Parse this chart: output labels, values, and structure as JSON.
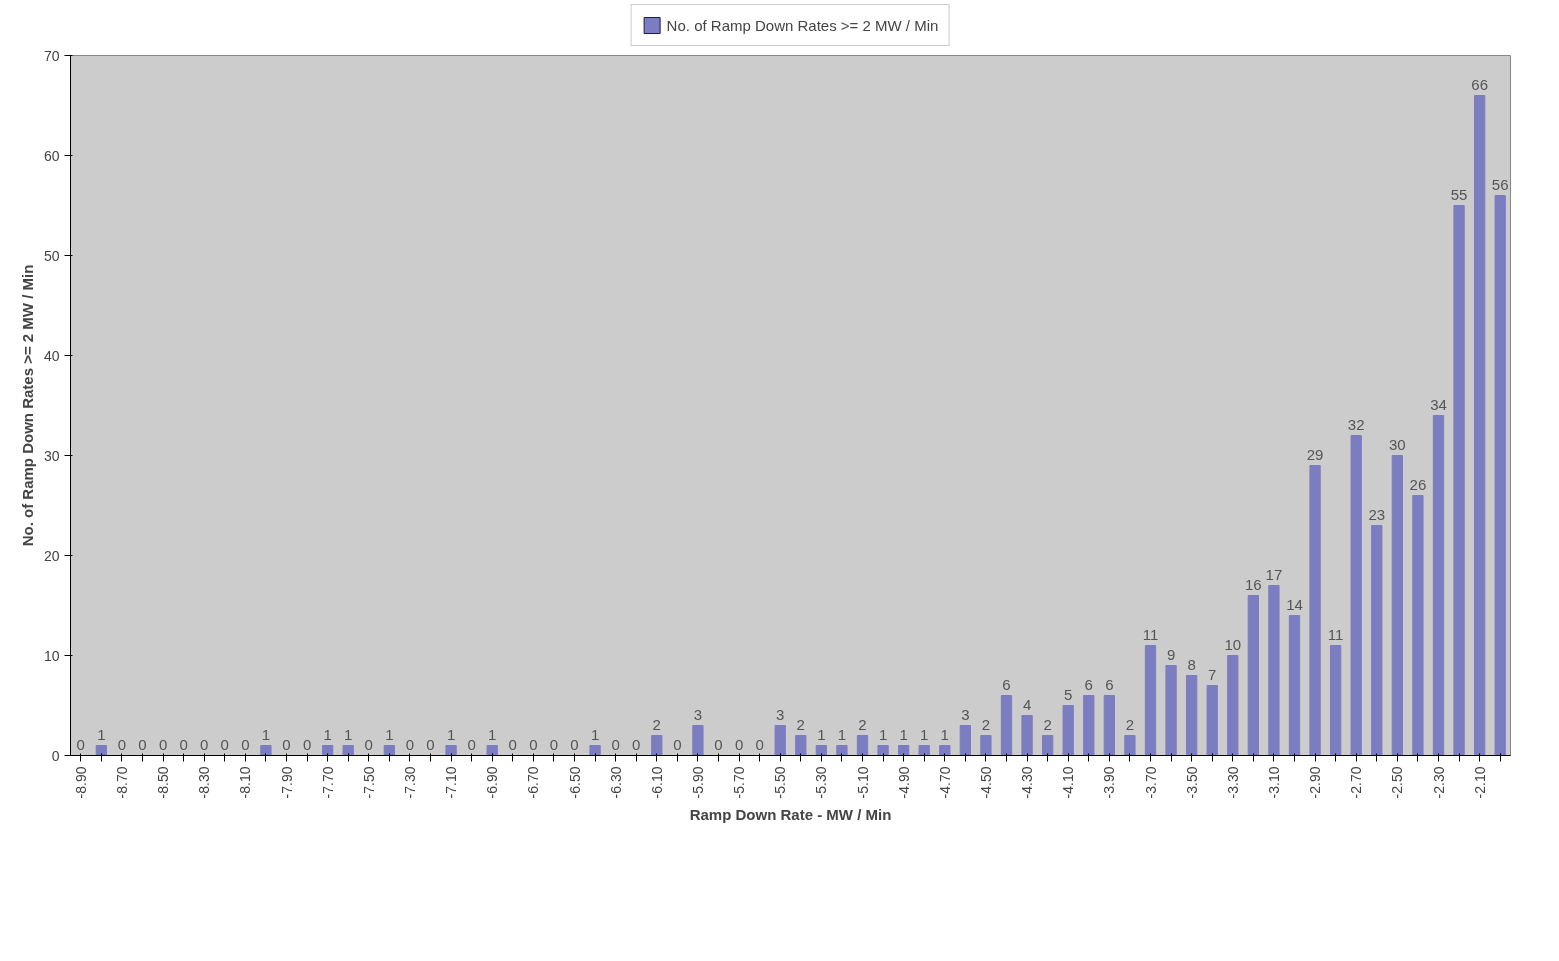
{
  "chart_data": {
    "type": "bar",
    "xlabel": "Ramp Down Rate - MW / Min",
    "ylabel": "No. of Ramp Down Rates >= 2 MW / Min",
    "categories": [
      "-8.90",
      null,
      "-8.70",
      null,
      "-8.50",
      null,
      "-8.30",
      null,
      "-8.10",
      null,
      "-7.90",
      null,
      "-7.70",
      null,
      "-7.50",
      null,
      "-7.30",
      null,
      "-7.10",
      null,
      "-6.90",
      null,
      "-6.70",
      null,
      "-6.50",
      null,
      "-6.30",
      null,
      "-6.10",
      null,
      "-5.90",
      null,
      "-5.70",
      null,
      "-5.50",
      null,
      "-5.30",
      null,
      "-5.10",
      null,
      "-4.90",
      null,
      "-4.70",
      null,
      "-4.50",
      null,
      "-4.30",
      null,
      "-4.10",
      null,
      "-3.90",
      null,
      "-3.70",
      null,
      "-3.50",
      null,
      "-3.30",
      null,
      "-3.10",
      null,
      "-2.90",
      null,
      "-2.70",
      null,
      "-2.50",
      null,
      "-2.30",
      null,
      "-2.10",
      null
    ],
    "series": [
      {
        "name": "No. of Ramp Down Rates >= 2 MW / Min",
        "color": "#7c7cc0",
        "values": [
          0,
          1,
          0,
          0,
          0,
          0,
          0,
          0,
          0,
          1,
          0,
          0,
          1,
          1,
          0,
          1,
          0,
          0,
          1,
          0,
          1,
          0,
          0,
          0,
          0,
          1,
          0,
          0,
          2,
          0,
          3,
          0,
          0,
          0,
          3,
          2,
          1,
          1,
          2,
          1,
          1,
          1,
          1,
          3,
          2,
          6,
          4,
          2,
          5,
          6,
          6,
          2,
          11,
          9,
          8,
          7,
          10,
          16,
          17,
          14,
          29,
          11,
          32,
          23,
          30,
          26,
          34,
          55,
          66,
          56
        ]
      }
    ],
    "ylim": [
      0,
      70
    ],
    "yticks": [
      0,
      10,
      20,
      30,
      40,
      50,
      60,
      70
    ],
    "data_labels": true,
    "legend": "top",
    "grid": false
  }
}
